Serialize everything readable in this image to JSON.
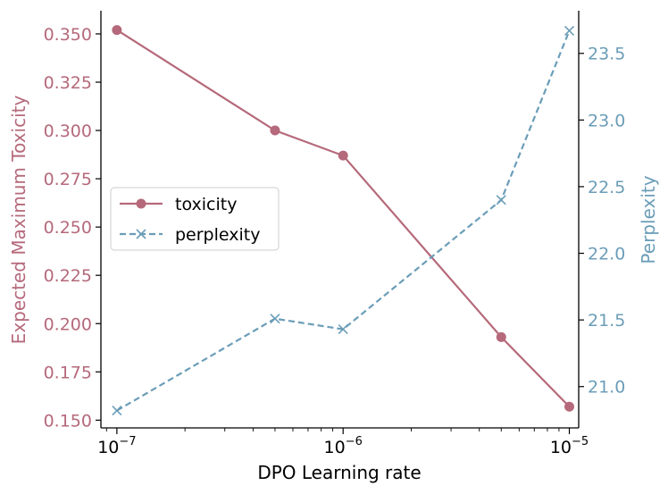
{
  "chart_data": {
    "type": "line",
    "x": [
      1e-07,
      5e-07,
      1e-06,
      5e-06,
      1e-05
    ],
    "x_scale": "log",
    "xlabel": "DPO Learning rate",
    "xticks": [
      {
        "value": 1e-07,
        "base": "10",
        "exp": "−7"
      },
      {
        "value": 1e-06,
        "base": "10",
        "exp": "−6"
      },
      {
        "value": 1e-05,
        "base": "10",
        "exp": "−5"
      }
    ],
    "xlim": [
      8.5e-08,
      1.1e-05
    ],
    "y_left": {
      "label": "Expected Maximum Toxicity",
      "ylim": [
        0.146,
        0.362
      ],
      "ticks": [
        "0.150",
        "0.175",
        "0.200",
        "0.225",
        "0.250",
        "0.275",
        "0.300",
        "0.325",
        "0.350"
      ],
      "color": "#b5697a"
    },
    "y_right": {
      "label": "Perplexity",
      "ylim": [
        20.69,
        23.82
      ],
      "ticks": [
        "21.0",
        "21.5",
        "22.0",
        "22.5",
        "23.0",
        "23.5"
      ],
      "color": "#6b9db8"
    },
    "series": [
      {
        "name": "toxicity",
        "axis": "left",
        "marker": "circle",
        "linestyle": "solid",
        "color": "#b5697a",
        "values": [
          0.352,
          0.3,
          0.287,
          0.193,
          0.157
        ]
      },
      {
        "name": "perplexity",
        "axis": "right",
        "marker": "x",
        "linestyle": "dashed",
        "color": "#6b9db8",
        "values": [
          20.82,
          21.51,
          21.43,
          22.4,
          23.67
        ]
      }
    ],
    "legend": "center-left",
    "grid": false
  }
}
